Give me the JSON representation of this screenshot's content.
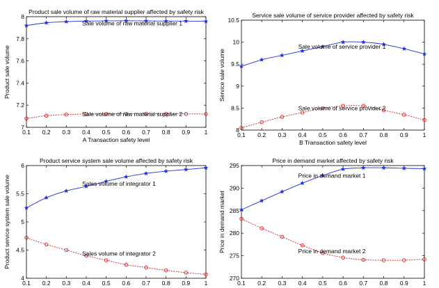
{
  "chart_data": [
    {
      "type": "line",
      "title": "Product sale volume of raw material supplier affected by safety risk",
      "xlabel": "A   Transaction safety level",
      "ylabel": "Product sale volume",
      "xlim": [
        0.1,
        1
      ],
      "ylim": [
        7,
        8
      ],
      "xticks": [
        "0.1",
        "0.2",
        "0.3",
        "0.4",
        "0.5",
        "0.6",
        "0.7",
        "0.8",
        "0.9",
        "1"
      ],
      "yticks": [
        "7",
        "7.2",
        "7.4",
        "7.6",
        "7.8",
        "8"
      ],
      "grid": false,
      "x": [
        0.1,
        0.2,
        0.3,
        0.4,
        0.5,
        0.6,
        0.7,
        0.8,
        0.9,
        1.0
      ],
      "series": [
        {
          "name": "Sale volume of raw material supplier 1",
          "color": "#1f2fd8",
          "marker": "star",
          "values": [
            7.92,
            7.945,
            7.955,
            7.96,
            7.962,
            7.963,
            7.962,
            7.96,
            7.96,
            7.958
          ],
          "label_at": [
            0.4,
            7.94
          ]
        },
        {
          "name": "Sale volume of raw material supplier 2",
          "color": "#d81f1f",
          "marker": "circle",
          "values": [
            7.08,
            7.105,
            7.115,
            7.12,
            7.122,
            7.123,
            7.123,
            7.122,
            7.121,
            7.12
          ],
          "label_at": [
            0.4,
            7.12
          ]
        }
      ]
    },
    {
      "type": "line",
      "title": "Service sale volume of service provider affected by safety risk",
      "xlabel": "B   Transaction safety level",
      "ylabel": "Service sale volume",
      "xlim": [
        0.1,
        1
      ],
      "ylim": [
        8,
        10.5
      ],
      "xticks": [
        "0.1",
        "0.2",
        "0.3",
        "0.4",
        "0.5",
        "0.6",
        "0.7",
        "0.8",
        "0.9",
        "1"
      ],
      "yticks": [
        "8",
        "8.5",
        "9",
        "9.5",
        "10",
        "10.5"
      ],
      "grid": false,
      "x": [
        0.1,
        0.2,
        0.3,
        0.4,
        0.5,
        0.6,
        0.7,
        0.8,
        0.9,
        1.0
      ],
      "series": [
        {
          "name": "Sale volume of service provider 1",
          "color": "#1f2fd8",
          "marker": "star",
          "values": [
            9.45,
            9.6,
            9.7,
            9.8,
            9.9,
            10.0,
            10.0,
            9.95,
            9.85,
            9.73
          ],
          "label_at": [
            0.4,
            9.9
          ]
        },
        {
          "name": "Sale volume of service provider 2",
          "color": "#d81f1f",
          "marker": "circle",
          "values": [
            8.05,
            8.18,
            8.3,
            8.4,
            8.5,
            8.55,
            8.55,
            8.45,
            8.35,
            8.23
          ],
          "label_at": [
            0.4,
            8.5
          ]
        }
      ]
    },
    {
      "type": "line",
      "title": "Product service system sale volume  affected by safety risk",
      "xlabel": "C   Transaction safety level",
      "ylabel": "Product service system sale volume",
      "xlim": [
        0.1,
        1
      ],
      "ylim": [
        4,
        6
      ],
      "xticks": [
        "0.1",
        "0.2",
        "0.3",
        "0.4",
        "0.5",
        "0.6",
        "0.7",
        "0.8",
        "0.9",
        "1"
      ],
      "yticks": [
        "4",
        "4.5",
        "5",
        "5.5",
        "6"
      ],
      "grid": false,
      "x": [
        0.1,
        0.2,
        0.3,
        0.4,
        0.5,
        0.6,
        0.7,
        0.8,
        0.9,
        1.0
      ],
      "series": [
        {
          "name": "Sales volume of integrator 1",
          "color": "#1f2fd8",
          "marker": "star",
          "values": [
            5.25,
            5.43,
            5.55,
            5.63,
            5.72,
            5.8,
            5.86,
            5.9,
            5.93,
            5.96
          ],
          "label_at": [
            0.4,
            5.68
          ]
        },
        {
          "name": "Sales volume of integrator 2",
          "color": "#d81f1f",
          "marker": "circle",
          "values": [
            4.72,
            4.6,
            4.5,
            4.4,
            4.32,
            4.24,
            4.19,
            4.14,
            4.1,
            4.07
          ],
          "label_at": [
            0.4,
            4.44
          ]
        }
      ]
    },
    {
      "type": "line",
      "title": "Price in demand market affected by safety risk",
      "xlabel": "D   Transaction safety level",
      "ylabel": "Price in demand market",
      "xlim": [
        0.1,
        1
      ],
      "ylim": [
        270,
        295
      ],
      "xticks": [
        "0.1",
        "0.2",
        "0.3",
        "0.4",
        "0.5",
        "0.6",
        "0.7",
        "0.8",
        "0.9",
        "1"
      ],
      "yticks": [
        "270",
        "275",
        "280",
        "285",
        "290",
        "295"
      ],
      "grid": false,
      "x": [
        0.1,
        0.2,
        0.3,
        0.4,
        0.5,
        0.6,
        0.7,
        0.8,
        0.9,
        1.0
      ],
      "series": [
        {
          "name": "Price in demand market 1",
          "color": "#1f2fd8",
          "marker": "star",
          "values": [
            285.2,
            287.2,
            289.2,
            291.1,
            292.8,
            294.2,
            294.5,
            294.5,
            294.4,
            294.3
          ],
          "label_at": [
            0.4,
            292.8
          ]
        },
        {
          "name": "Price in demand market 2",
          "color": "#d81f1f",
          "marker": "circle",
          "values": [
            283.2,
            281.1,
            279.2,
            277.3,
            275.6,
            274.6,
            274.1,
            274.0,
            274.0,
            274.2
          ],
          "label_at": [
            0.4,
            276.0
          ]
        }
      ]
    }
  ]
}
